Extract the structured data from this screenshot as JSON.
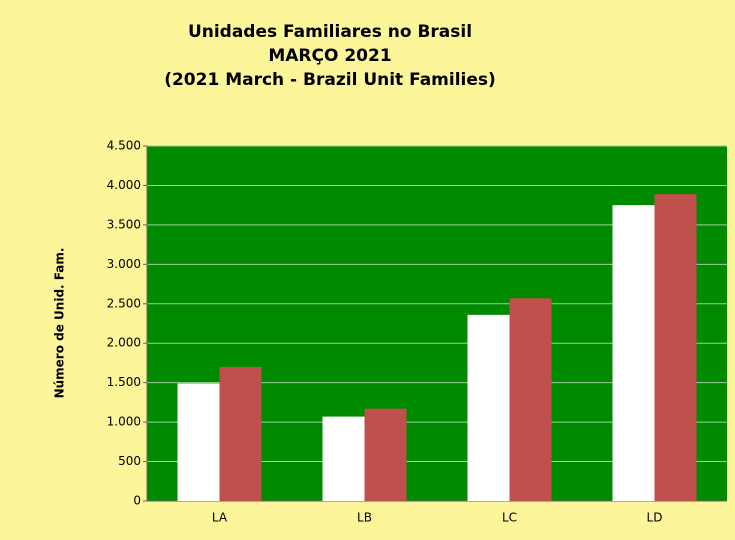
{
  "chart_data": {
    "type": "bar",
    "title_lines": [
      "Unidades Familiares no Brasil",
      "MARÇO 2021",
      "(2021 March - Brazil Unit Families)"
    ],
    "ylabel": "Número de Unid. Fam.",
    "categories": [
      "LA",
      "LB",
      "LC",
      "LD"
    ],
    "series": [
      {
        "color": "#ffffff",
        "values": [
          1490,
          1070,
          2360,
          3750
        ]
      },
      {
        "color": "#c0504d",
        "values": [
          1700,
          1170,
          2570,
          3890
        ]
      }
    ],
    "ylim": [
      0,
      4500
    ],
    "yticks": [
      0,
      500,
      {
        "value": 1000,
        "label": "1.000"
      },
      {
        "value": 1500,
        "label": "1.500"
      },
      {
        "value": 2000,
        "label": "2.000"
      },
      {
        "value": 2500,
        "label": "2.500"
      },
      {
        "value": 3000,
        "label": "3.000"
      },
      {
        "value": 3500,
        "label": "3.500"
      },
      {
        "value": 4000,
        "label": "4.000"
      },
      {
        "value": 4500,
        "label": "4.500"
      }
    ],
    "grid": true,
    "plot_background": "#008a00"
  }
}
